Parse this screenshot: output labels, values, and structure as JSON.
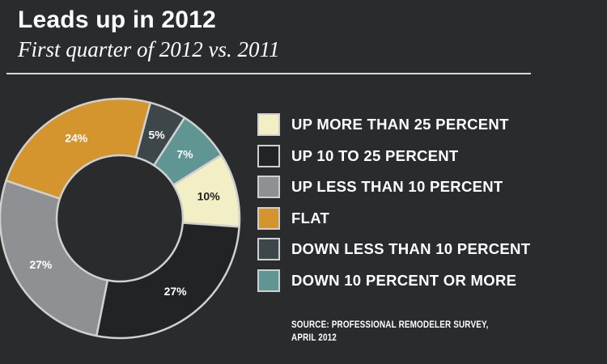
{
  "title": "Leads up in 2012",
  "subtitle": "First quarter of 2012 vs. 2011",
  "source": {
    "line1": "SOURCE: PROFESSIONAL REMODELER SURVEY,",
    "line2": "APRIL 2012"
  },
  "chart_data": {
    "type": "pie",
    "title": "Leads up in 2012",
    "subtitle": "First quarter of 2012 vs. 2011",
    "legend_position": "right",
    "slices": [
      {
        "label": "UP MORE THAN 25 PERCENT",
        "value": 10,
        "value_label": "10%",
        "color": "#f2eec6",
        "text_color": "#222222"
      },
      {
        "label": "UP 10 TO 25 PERCENT",
        "value": 27,
        "value_label": "27%",
        "color": "#222325",
        "text_color": "#ffffff"
      },
      {
        "label": "UP LESS THAN 10 PERCENT",
        "value": 27,
        "value_label": "27%",
        "color": "#8f9094",
        "text_color": "#ffffff"
      },
      {
        "label": "FLAT",
        "value": 24,
        "value_label": "24%",
        "color": "#d4952f",
        "text_color": "#ffffff"
      },
      {
        "label": "DOWN LESS THAN 10 PERCENT",
        "value": 5,
        "value_label": "5%",
        "color": "#3d4649",
        "text_color": "#ffffff"
      },
      {
        "label": "DOWN 10 PERCENT OR MORE",
        "value": 7,
        "value_label": "7%",
        "color": "#5f9593",
        "text_color": "#ffffff"
      }
    ]
  }
}
